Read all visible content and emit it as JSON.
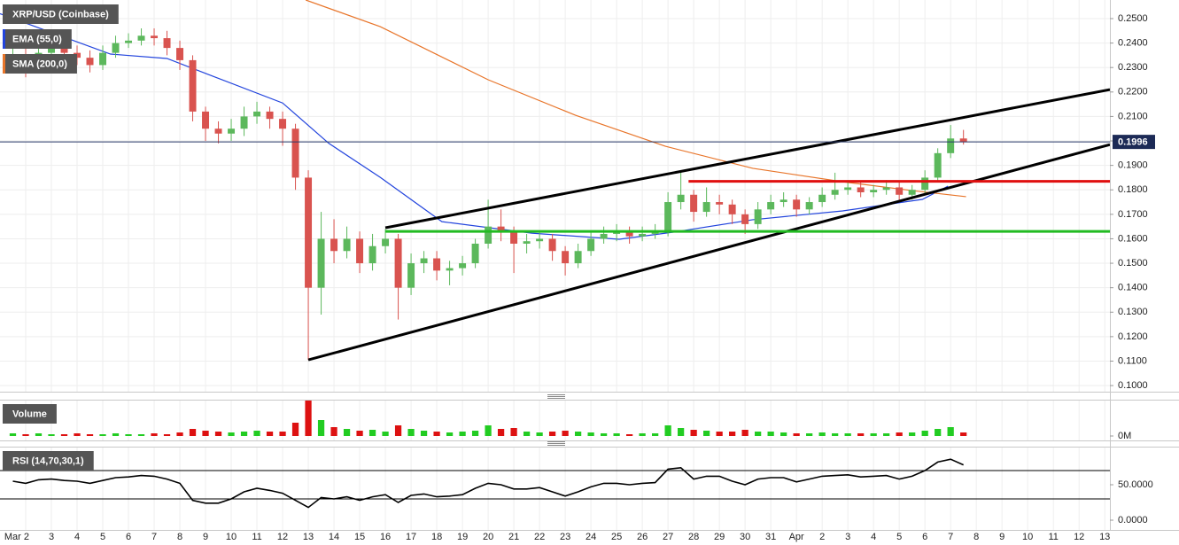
{
  "chart_data": [
    {
      "type": "candlestick",
      "title": "XRP/USD (Coinbase)",
      "x": [
        1.5,
        2,
        2.5,
        3,
        3.5,
        4,
        4.5,
        5,
        5.5,
        6,
        6.5,
        7,
        7.5,
        8,
        8.5,
        9,
        9.5,
        10,
        10.5,
        11,
        11.5,
        12,
        12.5,
        13,
        13.5,
        14,
        14.5,
        15,
        15.5,
        16,
        16.5,
        17,
        17.5,
        18,
        18.5,
        19,
        19.5,
        20,
        20.5,
        21,
        21.5,
        22,
        22.5,
        23,
        23.5,
        24,
        24.5,
        25,
        25.5,
        26,
        26.5,
        27,
        27.5,
        28,
        28.5,
        29,
        29.5,
        30,
        30.5,
        31,
        31.5,
        32,
        32.5,
        33,
        33.5,
        34,
        34.5,
        35,
        35.5,
        36,
        36.5,
        37,
        37.5,
        38,
        38.5
      ],
      "open": [
        0.233,
        0.235,
        0.232,
        0.236,
        0.238,
        0.236,
        0.234,
        0.231,
        0.236,
        0.24,
        0.241,
        0.243,
        0.242,
        0.238,
        0.233,
        0.212,
        0.205,
        0.203,
        0.205,
        0.21,
        0.212,
        0.209,
        0.205,
        0.185,
        0.14,
        0.16,
        0.155,
        0.16,
        0.15,
        0.157,
        0.16,
        0.14,
        0.15,
        0.152,
        0.147,
        0.148,
        0.15,
        0.158,
        0.165,
        0.163,
        0.158,
        0.159,
        0.16,
        0.155,
        0.15,
        0.155,
        0.16,
        0.162,
        0.163,
        0.161,
        0.162,
        0.163,
        0.175,
        0.178,
        0.171,
        0.175,
        0.174,
        0.17,
        0.166,
        0.172,
        0.175,
        0.176,
        0.172,
        0.175,
        0.178,
        0.18,
        0.181,
        0.179,
        0.18,
        0.181,
        0.178,
        0.18,
        0.185,
        0.195,
        0.201
      ],
      "high": [
        0.238,
        0.238,
        0.239,
        0.241,
        0.241,
        0.239,
        0.237,
        0.239,
        0.243,
        0.244,
        0.246,
        0.246,
        0.245,
        0.241,
        0.235,
        0.214,
        0.208,
        0.209,
        0.214,
        0.216,
        0.214,
        0.212,
        0.207,
        0.188,
        0.171,
        0.168,
        0.165,
        0.163,
        0.162,
        0.164,
        0.162,
        0.154,
        0.155,
        0.155,
        0.151,
        0.153,
        0.16,
        0.176,
        0.172,
        0.165,
        0.162,
        0.163,
        0.162,
        0.157,
        0.158,
        0.163,
        0.165,
        0.166,
        0.165,
        0.165,
        0.166,
        0.179,
        0.188,
        0.18,
        0.181,
        0.178,
        0.176,
        0.172,
        0.175,
        0.178,
        0.179,
        0.178,
        0.177,
        0.181,
        0.187,
        0.184,
        0.183,
        0.182,
        0.184,
        0.183,
        0.182,
        0.188,
        0.197,
        0.2065,
        0.2045
      ],
      "low": [
        0.228,
        0.226,
        0.229,
        0.233,
        0.233,
        0.231,
        0.228,
        0.229,
        0.234,
        0.238,
        0.239,
        0.239,
        0.235,
        0.229,
        0.208,
        0.2,
        0.199,
        0.2,
        0.202,
        0.207,
        0.205,
        0.198,
        0.18,
        0.1105,
        0.129,
        0.15,
        0.152,
        0.146,
        0.147,
        0.154,
        0.127,
        0.137,
        0.146,
        0.143,
        0.141,
        0.145,
        0.148,
        0.156,
        0.159,
        0.146,
        0.154,
        0.156,
        0.151,
        0.145,
        0.148,
        0.153,
        0.158,
        0.159,
        0.158,
        0.159,
        0.16,
        0.161,
        0.172,
        0.167,
        0.169,
        0.17,
        0.166,
        0.162,
        0.164,
        0.17,
        0.173,
        0.169,
        0.17,
        0.173,
        0.176,
        0.178,
        0.177,
        0.177,
        0.178,
        0.175,
        0.176,
        0.178,
        0.183,
        0.193,
        0.1985
      ],
      "close": [
        0.235,
        0.232,
        0.236,
        0.238,
        0.236,
        0.234,
        0.231,
        0.236,
        0.24,
        0.241,
        0.243,
        0.242,
        0.238,
        0.233,
        0.212,
        0.205,
        0.203,
        0.205,
        0.21,
        0.212,
        0.209,
        0.205,
        0.185,
        0.14,
        0.16,
        0.155,
        0.16,
        0.15,
        0.157,
        0.16,
        0.14,
        0.15,
        0.152,
        0.147,
        0.148,
        0.15,
        0.158,
        0.165,
        0.163,
        0.158,
        0.159,
        0.16,
        0.155,
        0.15,
        0.155,
        0.16,
        0.162,
        0.163,
        0.161,
        0.162,
        0.163,
        0.175,
        0.178,
        0.171,
        0.175,
        0.174,
        0.17,
        0.166,
        0.172,
        0.175,
        0.176,
        0.172,
        0.175,
        0.178,
        0.18,
        0.181,
        0.179,
        0.18,
        0.181,
        0.178,
        0.18,
        0.185,
        0.195,
        0.201,
        0.1996
      ],
      "up_color": "#5cb85c",
      "down_color": "#d9534f",
      "xlim": [
        1.0,
        44.2
      ],
      "ylim": [
        0.0975,
        0.2576
      ],
      "xticks": [
        {
          "value": 2,
          "label": "Mar 2"
        },
        3,
        4,
        5,
        6,
        7,
        8,
        9,
        10,
        11,
        12,
        13,
        14,
        15,
        16,
        17,
        18,
        19,
        20,
        21,
        22,
        23,
        24,
        25,
        26,
        27,
        28,
        29,
        30,
        31,
        {
          "value": 32,
          "label": "Apr"
        },
        {
          "value": 33,
          "label": "2"
        },
        {
          "value": 34,
          "label": "3"
        },
        {
          "value": 35,
          "label": "4"
        },
        {
          "value": 36,
          "label": "5"
        },
        {
          "value": 37,
          "label": "6"
        },
        {
          "value": 38,
          "label": "7"
        },
        {
          "value": 39,
          "label": "8"
        },
        {
          "value": 40,
          "label": "9"
        },
        {
          "value": 41,
          "label": "10"
        },
        {
          "value": 42,
          "label": "11"
        },
        {
          "value": 43,
          "label": "12"
        },
        {
          "value": 44,
          "label": "13"
        }
      ],
      "yticks": [
        {
          "value": 0.1,
          "label": "0.1000"
        },
        {
          "value": 0.11,
          "label": "0.1100"
        },
        {
          "value": 0.12,
          "label": "0.1200"
        },
        {
          "value": 0.13,
          "label": "0.1300"
        },
        {
          "value": 0.14,
          "label": "0.1400"
        },
        {
          "value": 0.15,
          "label": "0.1500"
        },
        {
          "value": 0.16,
          "label": "0.1600"
        },
        {
          "value": 0.17,
          "label": "0.1700"
        },
        {
          "value": 0.18,
          "label": "0.1800"
        },
        {
          "value": 0.19,
          "label": "0.1900"
        },
        {
          "value": 0.2,
          "label": "0.2000"
        },
        {
          "value": 0.21,
          "label": "0.2100"
        },
        {
          "value": 0.22,
          "label": "0.2200"
        },
        {
          "value": 0.23,
          "label": "0.2300"
        },
        {
          "value": 0.24,
          "label": "0.2400"
        },
        {
          "value": 0.25,
          "label": "0.2500"
        }
      ],
      "grid": true,
      "overlays": [
        {
          "name": "EMA (55,0)",
          "color": "#2244dd",
          "x": [
            1,
            5.3,
            7.5,
            9.3,
            12,
            13.8,
            15.8,
            18.2,
            21.7,
            25.1,
            27.2,
            30.3,
            33.8,
            36.9,
            37.9
          ],
          "values": [
            0.252,
            0.2355,
            0.2337,
            0.2264,
            0.2155,
            0.199,
            0.1851,
            0.167,
            0.1623,
            0.1598,
            0.1627,
            0.1678,
            0.1714,
            0.1761,
            0.1815
          ]
        },
        {
          "name": "SMA (200,0)",
          "color": "#e8752a",
          "x": [
            12.9,
            15.8,
            20,
            23.4,
            26.9,
            30.3,
            33.8,
            36.5,
            38.6
          ],
          "values": [
            0.2576,
            0.2467,
            0.225,
            0.2105,
            0.1978,
            0.1888,
            0.1833,
            0.1797,
            0.1772
          ]
        }
      ],
      "lines": [
        {
          "color": "#000000",
          "x": [
            16,
            44.2
          ],
          "values": [
            0.1645,
            0.221
          ]
        },
        {
          "color": "#000000",
          "x": [
            13,
            44.2
          ],
          "values": [
            0.1105,
            0.1985
          ]
        },
        {
          "color": "#e01010",
          "x": [
            27.8,
            44.2
          ],
          "values": [
            0.1835,
            0.1835
          ]
        },
        {
          "color": "#22bb22",
          "x": [
            16,
            44.2
          ],
          "values": [
            0.163,
            0.163
          ]
        }
      ],
      "last_price": {
        "value": 0.1996,
        "label": "0.1996"
      }
    },
    {
      "type": "bar",
      "title": "Volume",
      "x": [
        1.5,
        2,
        2.5,
        3,
        3.5,
        4,
        4.5,
        5,
        5.5,
        6,
        6.5,
        7,
        7.5,
        8,
        8.5,
        9,
        9.5,
        10,
        10.5,
        11,
        11.5,
        12,
        12.5,
        13,
        13.5,
        14,
        14.5,
        15,
        15.5,
        16,
        16.5,
        17,
        17.5,
        18,
        18.5,
        19,
        19.5,
        20,
        20.5,
        21,
        21.5,
        22,
        22.5,
        23,
        23.5,
        24,
        24.5,
        25,
        25.5,
        26,
        26.5,
        27,
        27.5,
        28,
        28.5,
        29,
        29.5,
        30,
        30.5,
        31,
        31.5,
        32,
        32.5,
        33,
        33.5,
        34,
        34.5,
        35,
        35.5,
        36,
        36.5,
        37,
        37.5,
        38,
        38.5
      ],
      "values": [
        3,
        2,
        3,
        2,
        2,
        3,
        2,
        2,
        3,
        2,
        2,
        3,
        2,
        4,
        8,
        6,
        5,
        4,
        5,
        6,
        5,
        5,
        15,
        40,
        18,
        10,
        8,
        6,
        7,
        5,
        12,
        8,
        6,
        5,
        4,
        5,
        6,
        12,
        8,
        9,
        5,
        4,
        5,
        6,
        5,
        4,
        3,
        3,
        2,
        3,
        3,
        12,
        9,
        7,
        6,
        5,
        5,
        7,
        5,
        5,
        4,
        3,
        3,
        4,
        3,
        3,
        3,
        3,
        3,
        4,
        4,
        6,
        8,
        10,
        4
      ],
      "up_color": "#22cc22",
      "down_color": "#dd1111",
      "xlim": [
        1.0,
        44.2
      ],
      "ylim": [
        -5,
        40
      ],
      "yticks": [
        {
          "value": 0,
          "label": "0M"
        }
      ]
    },
    {
      "type": "line",
      "title": "RSI (14,70,30,1)",
      "x": [
        1.5,
        2,
        2.5,
        3,
        3.5,
        4,
        4.5,
        5,
        5.5,
        6,
        6.5,
        7,
        7.5,
        8,
        8.5,
        9,
        9.5,
        10,
        10.5,
        11,
        11.5,
        12,
        12.5,
        13,
        13.5,
        14,
        14.5,
        15,
        15.5,
        16,
        16.5,
        17,
        17.5,
        18,
        18.5,
        19,
        19.5,
        20,
        20.5,
        21,
        21.5,
        22,
        22.5,
        23,
        23.5,
        24,
        24.5,
        25,
        25.5,
        26,
        26.5,
        27,
        27.5,
        28,
        28.5,
        29,
        29.5,
        30,
        30.5,
        31,
        31.5,
        32,
        32.5,
        33,
        33.5,
        34,
        34.5,
        35,
        35.5,
        36,
        36.5,
        37,
        37.5,
        38,
        38.5
      ],
      "values": [
        55,
        52,
        57,
        58,
        56,
        55,
        52,
        56,
        60,
        61,
        63,
        62,
        58,
        52,
        28,
        24,
        24,
        30,
        40,
        45,
        42,
        38,
        28,
        18,
        32,
        30,
        33,
        28,
        33,
        36,
        25,
        35,
        37,
        33,
        34,
        36,
        45,
        52,
        50,
        44,
        44,
        46,
        40,
        34,
        40,
        47,
        52,
        52,
        50,
        52,
        53,
        72,
        74,
        58,
        62,
        62,
        55,
        50,
        58,
        60,
        60,
        54,
        58,
        62,
        63,
        64,
        61,
        62,
        63,
        58,
        62,
        70,
        82,
        86,
        78
      ],
      "color": "#000000",
      "xlim": [
        1.0,
        44.2
      ],
      "ylim": [
        -13.75,
        102.5
      ],
      "yticks": [
        {
          "value": 50,
          "label": "50.0000"
        },
        {
          "value": 0,
          "label": "0.0000"
        }
      ],
      "bands": [
        70,
        30
      ]
    }
  ]
}
